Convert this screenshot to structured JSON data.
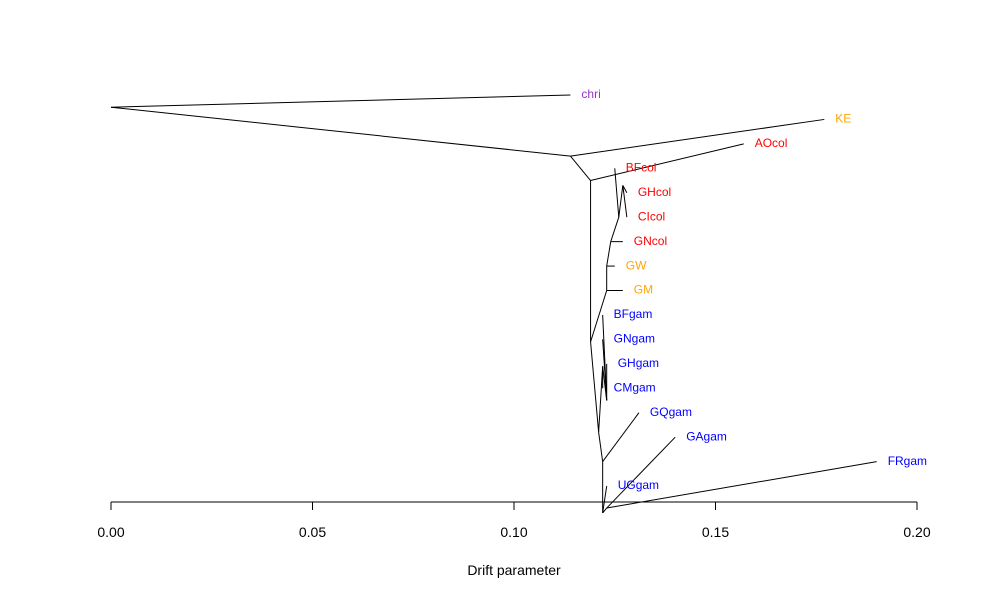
{
  "chart_data": {
    "type": "tree",
    "xlabel": "Drift parameter",
    "xlim": [
      0,
      0.2
    ],
    "x_ticks": [
      "0.00",
      "0.05",
      "0.10",
      "0.15",
      "0.20"
    ],
    "x_tick_values": [
      0,
      0.05,
      0.1,
      0.15,
      0.2
    ],
    "colors": {
      "purple": "#9932cc",
      "orange": "#ffa500",
      "red": "#ff0000",
      "blue": "#0000ff"
    },
    "nodes": {
      "root": {
        "x": 0.0,
        "y": 4.5
      },
      "n1": {
        "x": 0.114,
        "y": 6.5
      },
      "n2": {
        "x": 0.119,
        "y": 7.5
      },
      "n3": {
        "x": 0.119,
        "y": 14.1
      },
      "n4": {
        "x": 0.123,
        "y": 12.0
      },
      "n5": {
        "x": 0.123,
        "y": 11.0
      },
      "n6": {
        "x": 0.124,
        "y": 10.0
      },
      "n7": {
        "x": 0.126,
        "y": 9.0
      },
      "n8": {
        "x": 0.127,
        "y": 7.7
      },
      "n9": {
        "x": 0.121,
        "y": 17.8
      },
      "n10": {
        "x": 0.122,
        "y": 19.0
      },
      "n11": {
        "x": 0.122,
        "y": 21.1
      },
      "n12": {
        "x": 0.123,
        "y": 20.9
      },
      "n13": {
        "x": 0.122,
        "y": 15.1
      },
      "n14": {
        "x": 0.123,
        "y": 16.5
      }
    },
    "tips": [
      {
        "name": "chri",
        "x": 0.114,
        "y": 4.0,
        "color": "purple"
      },
      {
        "name": "KE",
        "x": 0.177,
        "y": 5.0,
        "color": "orange"
      },
      {
        "name": "AOcol",
        "x": 0.157,
        "y": 6.0,
        "color": "red"
      },
      {
        "name": "BFcol",
        "x": 0.125,
        "y": 7.0,
        "color": "red"
      },
      {
        "name": "GHcol",
        "x": 0.128,
        "y": 8.0,
        "color": "red"
      },
      {
        "name": "CIcol",
        "x": 0.128,
        "y": 9.0,
        "color": "red"
      },
      {
        "name": "GNcol",
        "x": 0.127,
        "y": 10.0,
        "color": "red"
      },
      {
        "name": "GW",
        "x": 0.125,
        "y": 11.0,
        "color": "orange"
      },
      {
        "name": "GM",
        "x": 0.127,
        "y": 12.0,
        "color": "orange"
      },
      {
        "name": "BFgam",
        "x": 0.122,
        "y": 13.0,
        "color": "blue"
      },
      {
        "name": "GNgam",
        "x": 0.122,
        "y": 14.0,
        "color": "blue"
      },
      {
        "name": "GHgam",
        "x": 0.123,
        "y": 15.0,
        "color": "blue"
      },
      {
        "name": "CMgam",
        "x": 0.122,
        "y": 16.0,
        "color": "blue"
      },
      {
        "name": "GQgam",
        "x": 0.131,
        "y": 17.0,
        "color": "blue"
      },
      {
        "name": "GAgam",
        "x": 0.14,
        "y": 18.0,
        "color": "blue"
      },
      {
        "name": "FRgam",
        "x": 0.19,
        "y": 19.0,
        "color": "blue"
      },
      {
        "name": "UGgam",
        "x": 0.123,
        "y": 20.0,
        "color": "blue"
      }
    ],
    "edges": [
      [
        "root",
        "chri"
      ],
      [
        "root",
        "n1"
      ],
      [
        "n1",
        "KE"
      ],
      [
        "n1",
        "n2"
      ],
      [
        "n2",
        "AOcol"
      ],
      [
        "n2",
        "n3"
      ],
      [
        "n3",
        "n4"
      ],
      [
        "n3",
        "n9"
      ],
      [
        "n4",
        "GM"
      ],
      [
        "n4",
        "n5"
      ],
      [
        "n5",
        "GW"
      ],
      [
        "n5",
        "n6"
      ],
      [
        "n6",
        "GNcol"
      ],
      [
        "n6",
        "n7"
      ],
      [
        "n7",
        "n8"
      ],
      [
        "n7",
        "BFcol"
      ],
      [
        "n8",
        "GHcol"
      ],
      [
        "n8",
        "CIcol"
      ],
      [
        "n9",
        "n13"
      ],
      [
        "n9",
        "n10"
      ],
      [
        "n10",
        "n11"
      ],
      [
        "n10",
        "GQgam"
      ],
      [
        "n11",
        "UGgam"
      ],
      [
        "n11",
        "n12"
      ],
      [
        "n12",
        "GAgam"
      ],
      [
        "n12",
        "FRgam"
      ],
      [
        "n13",
        "CMgam"
      ],
      [
        "n13",
        "n14"
      ],
      [
        "n14",
        "GHgam"
      ],
      [
        "n14",
        "BFgam"
      ],
      [
        "n14",
        "GNgam"
      ]
    ]
  }
}
